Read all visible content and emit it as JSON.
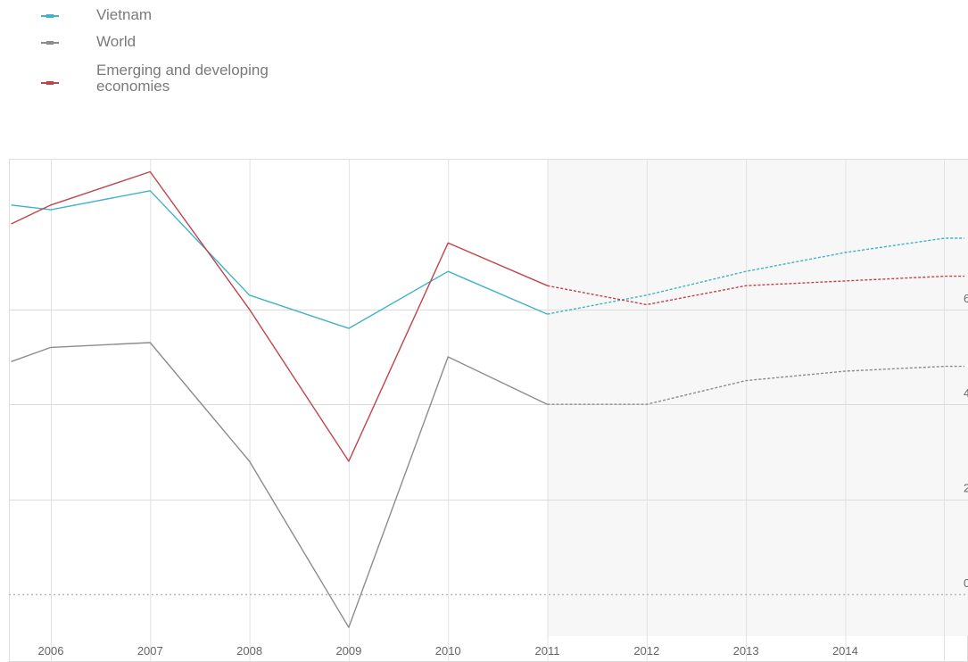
{
  "legend": {
    "items": [
      {
        "label": "Vietnam",
        "color": "#3fb3c7"
      },
      {
        "label": "World",
        "color": "#8c8c8c"
      },
      {
        "label": "Emerging and developing economies",
        "color": "#c0444a"
      }
    ]
  },
  "chart_data": {
    "type": "line",
    "x": [
      2005.6,
      2006,
      2007,
      2008,
      2009,
      2010,
      2011,
      2012,
      2013,
      2014,
      2015,
      2015.2
    ],
    "categories": [
      "2006",
      "2007",
      "2008",
      "2009",
      "2010",
      "2011",
      "2012",
      "2013",
      "2014"
    ],
    "ylim": [
      -0.8,
      9.2
    ],
    "yticks": [
      0,
      2,
      4,
      6
    ],
    "ytick_labels": [
      "0",
      "2",
      "4",
      "6"
    ],
    "projection_start": 2011,
    "series": [
      {
        "name": "Vietnam",
        "color": "#3fb3c7",
        "values": [
          8.2,
          8.1,
          8.5,
          6.3,
          5.6,
          6.8,
          5.9,
          6.3,
          6.8,
          7.2,
          7.5,
          7.5
        ]
      },
      {
        "name": "World",
        "color": "#8c8c8c",
        "values": [
          4.9,
          5.2,
          5.3,
          2.8,
          -0.7,
          5.0,
          4.0,
          4.0,
          4.5,
          4.7,
          4.8,
          4.8
        ]
      },
      {
        "name": "Emerging and developing economies",
        "color": "#c0444a",
        "values": [
          7.8,
          8.2,
          8.9,
          6.0,
          2.8,
          7.4,
          6.5,
          6.1,
          6.5,
          6.6,
          6.7,
          6.7
        ]
      }
    ]
  }
}
